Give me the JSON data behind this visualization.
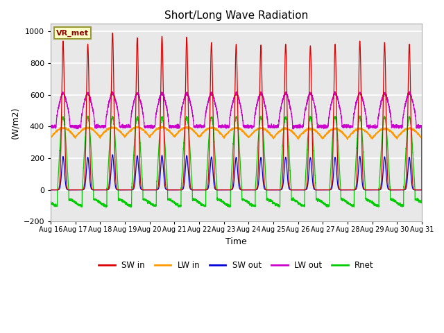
{
  "title": "Short/Long Wave Radiation",
  "xlabel": "Time",
  "ylabel": "(W/m2)",
  "station_label": "VR_met",
  "ylim": [
    -200,
    1050
  ],
  "colors": {
    "SW_in": "#dd0000",
    "LW_in": "#ff9900",
    "SW_out": "#0000dd",
    "LW_out": "#cc00cc",
    "Rnet": "#00cc00"
  },
  "legend_labels": [
    "SW in",
    "LW in",
    "SW out",
    "LW out",
    "Rnet"
  ],
  "bg_color": "#e8e8e8",
  "grid_color": "white",
  "yticks": [
    -200,
    0,
    200,
    400,
    600,
    800,
    1000
  ],
  "xtick_labels": [
    "Aug 16",
    "Aug 17",
    "Aug 18",
    "Aug 19",
    "Aug 20",
    "Aug 21",
    "Aug 22",
    "Aug 23",
    "Aug 24",
    "Aug 25",
    "Aug 26",
    "Aug 27",
    "Aug 28",
    "Aug 29",
    "Aug 30",
    "Aug 31"
  ],
  "num_days": 15,
  "pts_per_day": 288
}
